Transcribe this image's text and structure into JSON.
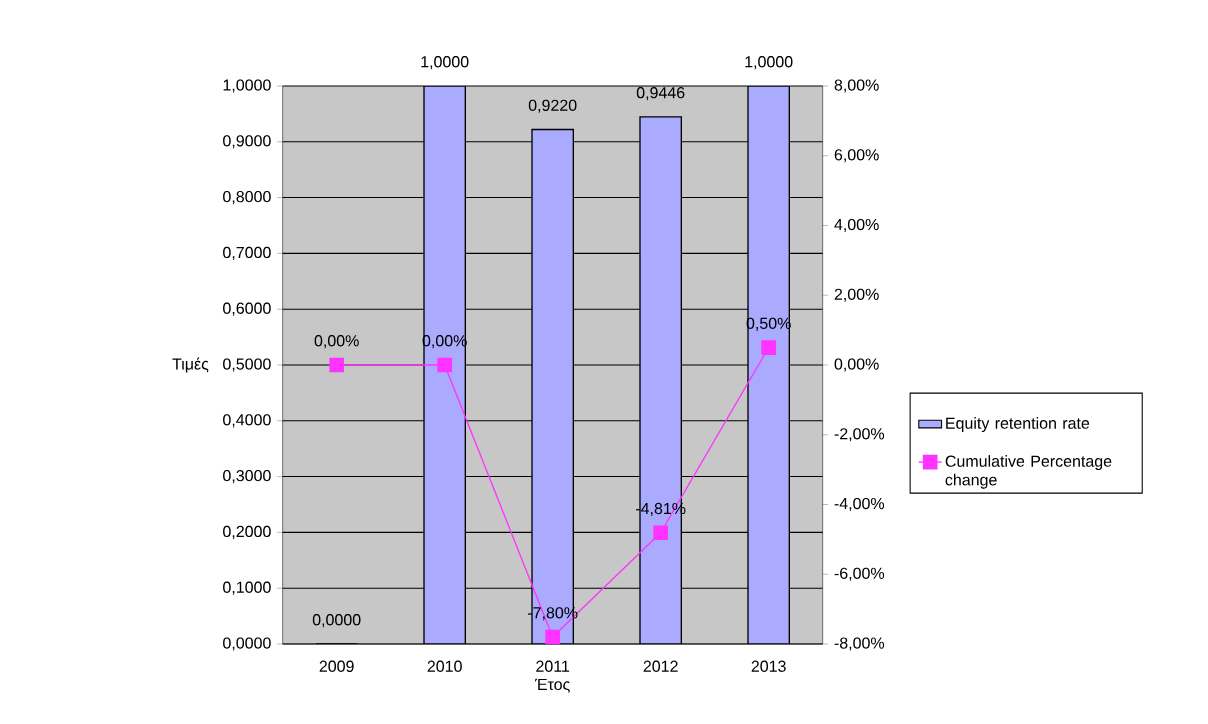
{
  "chart_data": {
    "type": "bar",
    "xlabel": "Έτος",
    "ylabel": "Τιμές",
    "categories": [
      "2009",
      "2010",
      "2011",
      "2012",
      "2013"
    ],
    "series": [
      {
        "name": "Equity retention rate",
        "color": "#aaaaff",
        "values": [
          0,
          1,
          0.922,
          0.9446,
          1
        ],
        "value_labels": [
          "0,0000",
          "1,0000",
          "0,9220",
          "0,9446",
          "1,0000"
        ]
      },
      {
        "name": "Cumulative Percentage change",
        "type": "line",
        "axis": "y2",
        "color": "#ff33ff",
        "marker": "square",
        "values": [
          0,
          0,
          -7.8,
          -4.81,
          0.5
        ],
        "value_labels": [
          "0,00%",
          "0,00%",
          "-7,80%",
          "-4,81%",
          "0,50%"
        ]
      }
    ],
    "ylim": [
      0,
      1
    ],
    "yticks": [
      {
        "value": 0,
        "label": "0,0000"
      },
      {
        "value": 0.1,
        "label": "0,1000"
      },
      {
        "value": 0.2,
        "label": "0,2000"
      },
      {
        "value": 0.3,
        "label": "0,3000"
      },
      {
        "value": 0.4,
        "label": "0,4000"
      },
      {
        "value": 0.5,
        "label": "0,5000"
      },
      {
        "value": 0.6,
        "label": "0,6000"
      },
      {
        "value": 0.7,
        "label": "0,7000"
      },
      {
        "value": 0.8,
        "label": "0,8000"
      },
      {
        "value": 0.9,
        "label": "0,9000"
      },
      {
        "value": 1,
        "label": "1,0000"
      }
    ],
    "y2lim": [
      -8,
      8
    ],
    "y2ticks": [
      {
        "value": -8,
        "label": "-8,00%"
      },
      {
        "value": -6,
        "label": "-6,00%"
      },
      {
        "value": -4,
        "label": "-4,00%"
      },
      {
        "value": -2,
        "label": "-2,00%"
      },
      {
        "value": 0,
        "label": "0,00%"
      },
      {
        "value": 2,
        "label": "2,00%"
      },
      {
        "value": 4,
        "label": "4,00%"
      },
      {
        "value": 6,
        "label": "6,00%"
      },
      {
        "value": 8,
        "label": "8,00%"
      }
    ],
    "grid": "y",
    "legend": "right"
  }
}
